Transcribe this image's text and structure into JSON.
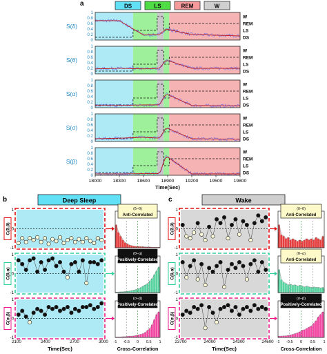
{
  "panel_letters": {
    "a": "a",
    "b": "b",
    "c": "c"
  },
  "colors": {
    "ds": "#aeeaf6",
    "ls": "#9ff09a",
    "rem": "#f6b3b3",
    "w": "#c8c8c8",
    "ds_tag": "#62e0f6",
    "ls_tag": "#4fdc45",
    "rem_tag": "#f49a9a",
    "w_tag": "#cfcfcf",
    "trace": "#6e6ee8",
    "smooth": "#c02020",
    "ylabel": "#1e88c6",
    "red": "#e01010",
    "teal": "#2fcf9c",
    "magenta": "#ee1a8c",
    "green_hist": "#30c98a",
    "yellow_box": "#fdf9c8",
    "black_box": "#111111"
  },
  "stage_tags": [
    "DS",
    "LS",
    "REM",
    "W"
  ],
  "chart_data": [
    {
      "type": "line",
      "panel": "a",
      "xlabel": "Time(Sec)",
      "xlim": [
        18000,
        19800
      ],
      "xticks": [
        18000,
        18300,
        18600,
        18900,
        19200,
        19500,
        19800
      ],
      "ylim": [
        0,
        1
      ],
      "yticks": [
        0,
        0.2,
        0.4,
        0.6,
        0.8,
        1
      ],
      "stage_levels": {
        "W": 0.85,
        "REM": 0.6,
        "LS": 0.35,
        "DS": 0.1
      },
      "hypnogram": [
        {
          "stage": "DS",
          "x0": 18000,
          "x1": 18470
        },
        {
          "stage": "LS",
          "x0": 18470,
          "x1": 18770
        },
        {
          "stage": "W",
          "x0": 18770,
          "x1": 18850
        },
        {
          "stage": "LS",
          "x0": 18850,
          "x1": 18920
        },
        {
          "stage": "REM",
          "x0": 18920,
          "x1": 19800
        }
      ],
      "series": [
        {
          "name": "S(δ)",
          "values": [
            0.7,
            0.7,
            0.18,
            0.2,
            0.4,
            0.2,
            0.15
          ]
        },
        {
          "name": "S(θ)",
          "values": [
            0.18,
            0.2,
            0.18,
            0.2,
            0.5,
            0.2,
            0.2
          ]
        },
        {
          "name": "S(α)",
          "values": [
            0.08,
            0.08,
            0.1,
            0.1,
            0.5,
            0.08,
            0.06
          ]
        },
        {
          "name": "S(σ)",
          "values": [
            0.1,
            0.12,
            0.15,
            0.12,
            0.5,
            0.1,
            0.08
          ]
        },
        {
          "name": "S(β)",
          "values": [
            0.05,
            0.05,
            0.06,
            0.06,
            0.7,
            0.05,
            0.05
          ]
        }
      ],
      "series_x": [
        18000,
        18300,
        18600,
        18800,
        18880,
        19200,
        19800
      ]
    },
    {
      "type": "scatter",
      "panel": "b",
      "title": "Deep Sleep",
      "xlabel": "Time(Sec)",
      "xlim": [
        2100,
        3000
      ],
      "xticks": [
        2100,
        2400,
        2700,
        3000
      ],
      "ylim": [
        -1,
        1
      ],
      "yticks": [
        -1,
        0,
        1
      ],
      "series": [
        {
          "name": "C(δ,θ)",
          "values": [
            -0.75,
            -0.5,
            -0.7,
            -0.5,
            -0.6,
            -0.45,
            -0.7,
            -0.5,
            -0.8,
            -0.55,
            -0.65,
            -0.45,
            -0.75,
            -0.6,
            -0.5,
            -0.7,
            -0.55,
            -0.7,
            -0.5,
            -0.65,
            -0.75,
            -0.5,
            -0.6
          ]
        },
        {
          "name": "C(θ,α)",
          "values": [
            0.7,
            0.5,
            0.2,
            0.7,
            0.8,
            0.1,
            0.6,
            0.2,
            0.7,
            0.8,
            0.4,
            0.6,
            0.1,
            -0.2,
            0.5,
            0.6,
            0.1,
            0.7,
            -0.5,
            0.6,
            0.6,
            0.5,
            0.7
          ]
        },
        {
          "name": "C(σ,β)",
          "values": [
            0.2,
            0.4,
            0.1,
            -0.2,
            0.3,
            0.5,
            0.4,
            0.2,
            0.6,
            0.5,
            0.6,
            0.4,
            0.5,
            0.6,
            0.3,
            0.5,
            0.4,
            0.6,
            0.6,
            0.7,
            0.5,
            0.6,
            0.8
          ]
        }
      ]
    },
    {
      "type": "scatter",
      "panel": "c",
      "title": "Wake",
      "xlabel": "Time(Sec)",
      "xlim": [
        23700,
        24600
      ],
      "xticks": [
        23700,
        24000,
        24300,
        24600
      ],
      "ylim": [
        -1,
        1
      ],
      "yticks": [
        -1,
        0,
        1
      ],
      "series": [
        {
          "name": "C(δ,θ)",
          "values": [
            0.2,
            -0.4,
            -0.5,
            -0.2,
            0.3,
            -0.3,
            -0.6,
            0.1,
            -0.4,
            0.5,
            0.3,
            0.6,
            -0.5,
            0.2,
            0.5,
            -0.3,
            0.4,
            0.2,
            -0.6,
            0.3,
            0.7,
            0.4,
            0.6
          ]
        },
        {
          "name": "C(θ,α)",
          "values": [
            0.6,
            -0.2,
            0.4,
            0.7,
            -0.3,
            0.5,
            -0.6,
            0.3,
            0.1,
            0.4,
            0.6,
            -0.7,
            0.2,
            0.5,
            0.3,
            0.6,
            0.4,
            -0.3,
            0.5,
            0.7,
            0.1,
            0.6,
            0.2
          ]
        },
        {
          "name": "C(σ,β)",
          "values": [
            0.2,
            0.4,
            0.3,
            0.6,
            0.5,
            0.7,
            -0.5,
            0.6,
            0.3,
            -0.2,
            0.5,
            0.6,
            0.7,
            0.4,
            0.6,
            0.2,
            0.5,
            0.6,
            0.4,
            0.7,
            0.5,
            0.6,
            0.5
          ]
        }
      ]
    },
    {
      "type": "area",
      "panel": "histograms",
      "xlabel": "Cross-Correlation",
      "xlim": [
        -1,
        1
      ],
      "xticks": [
        -1,
        -0.5,
        0,
        0.5,
        1
      ],
      "boxes": [
        {
          "panel": "b",
          "row": 0,
          "pair": "(δ–θ)",
          "label": "Anti-Correlated",
          "style": "yellow"
        },
        {
          "panel": "b",
          "row": 1,
          "pair": "(θ–α)",
          "label": "Positively-Correlated",
          "style": "black"
        },
        {
          "panel": "b",
          "row": 2,
          "pair": "(σ–β)",
          "label": "Positively-Correlated",
          "style": "black"
        },
        {
          "panel": "c",
          "row": 0,
          "pair": "(δ–θ)",
          "label": "Anti-Correlated",
          "style": "yellow"
        },
        {
          "panel": "c",
          "row": 1,
          "pair": "(θ–α)",
          "label": "Anti-Correlated",
          "style": "yellow"
        },
        {
          "panel": "c",
          "row": 2,
          "pair": "(σ–β)",
          "label": "Positively-Correlated",
          "style": "black"
        }
      ],
      "densities": [
        [
          0.9,
          0.6,
          0.45,
          0.3,
          0.2,
          0.15,
          0.1,
          0.08,
          0.06,
          0.05,
          0.05,
          0.04,
          0.04,
          0.03,
          0.03,
          0.03,
          0.02,
          0.02,
          0.02,
          0.02
        ],
        [
          0.02,
          0.02,
          0.03,
          0.03,
          0.04,
          0.05,
          0.06,
          0.08,
          0.1,
          0.12,
          0.15,
          0.2,
          0.25,
          0.3,
          0.35,
          0.45,
          0.55,
          0.7,
          0.85,
          1.0
        ],
        [
          0.02,
          0.02,
          0.02,
          0.03,
          0.03,
          0.04,
          0.05,
          0.05,
          0.06,
          0.08,
          0.1,
          0.12,
          0.15,
          0.2,
          0.28,
          0.35,
          0.5,
          0.7,
          0.9,
          1.0
        ],
        [
          0.9,
          0.5,
          0.45,
          0.35,
          0.4,
          0.3,
          0.35,
          0.3,
          0.25,
          0.3,
          0.25,
          0.3,
          0.35,
          0.3,
          0.35,
          0.3,
          0.4,
          0.35,
          0.3,
          0.45
        ],
        [
          0.9,
          0.5,
          0.4,
          0.35,
          0.3,
          0.32,
          0.28,
          0.3,
          0.25,
          0.28,
          0.25,
          0.22,
          0.25,
          0.22,
          0.2,
          0.22,
          0.2,
          0.2,
          0.18,
          0.2
        ],
        [
          0.05,
          0.05,
          0.06,
          0.06,
          0.08,
          0.1,
          0.12,
          0.15,
          0.18,
          0.22,
          0.28,
          0.3,
          0.35,
          0.4,
          0.45,
          0.55,
          0.65,
          0.8,
          0.9,
          1.0
        ]
      ]
    }
  ]
}
